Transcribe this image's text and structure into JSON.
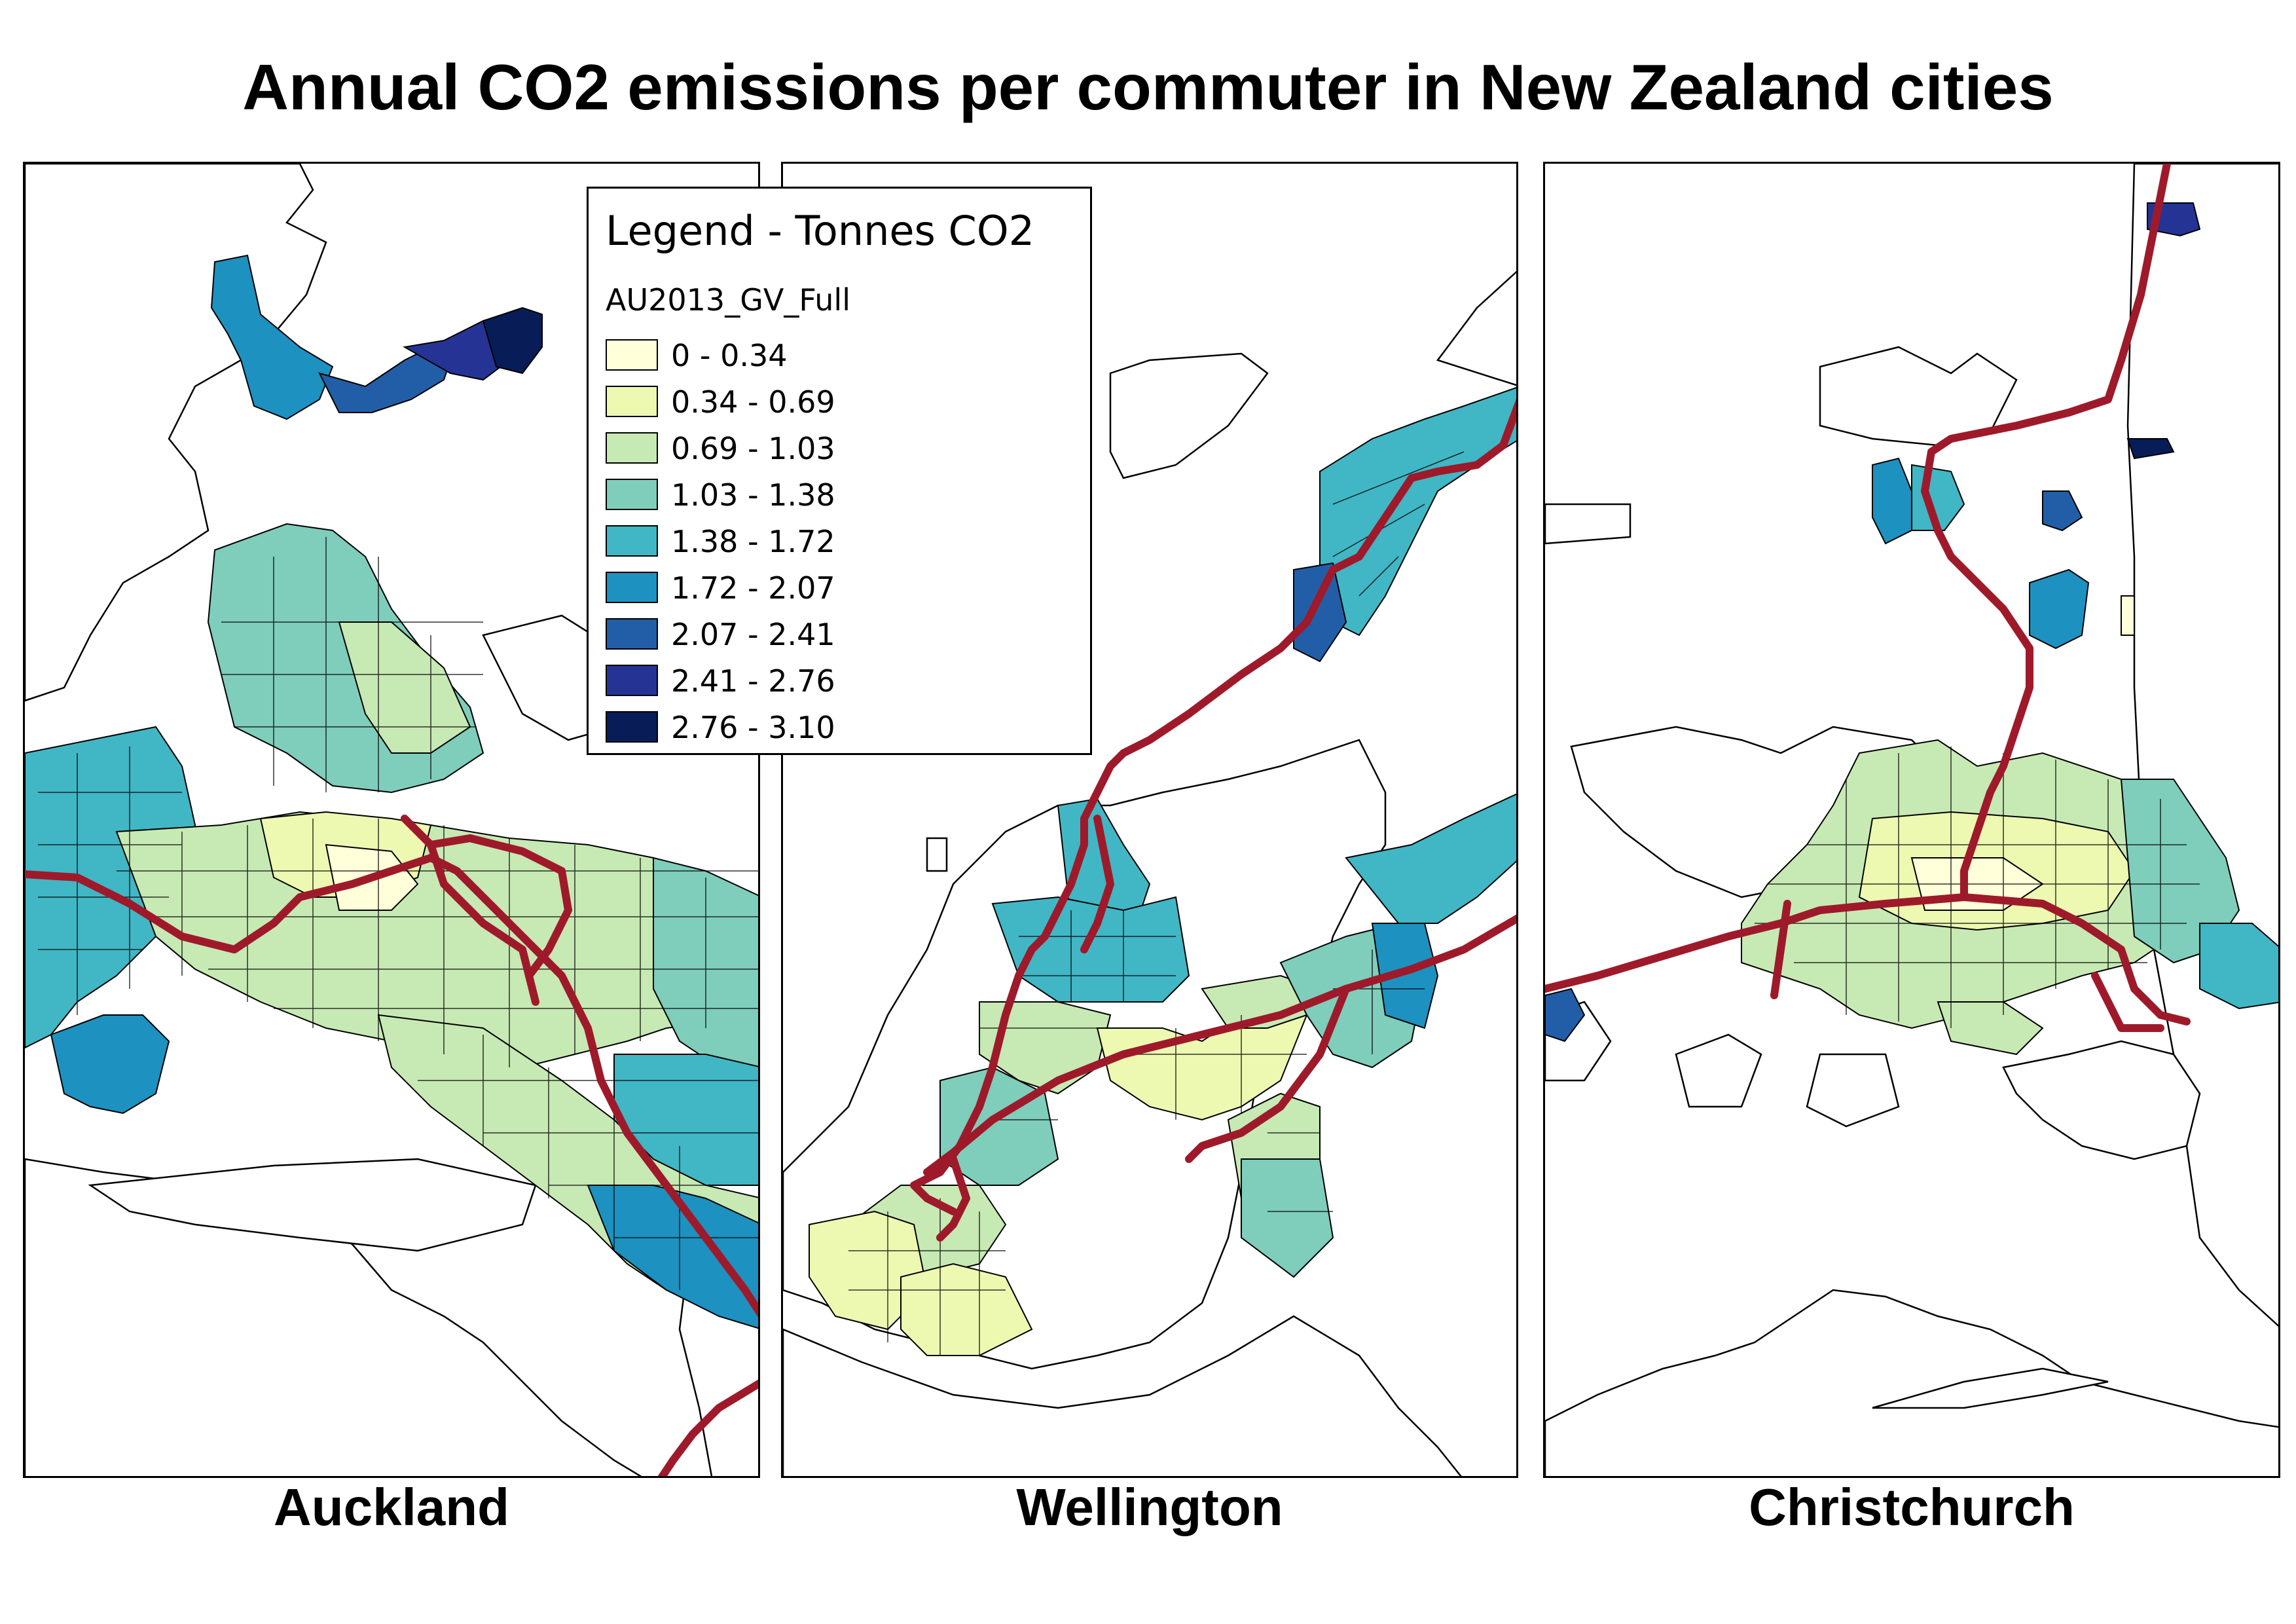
{
  "title": "Annual CO2 emissions per commuter in New Zealand cities",
  "legend": {
    "title": "Legend - Tonnes CO2",
    "subtitle": "AU2013_GV_Full",
    "classes": [
      {
        "label": "0 - 0.34",
        "color": "#ffffd9"
      },
      {
        "label": "0.34 - 0.69",
        "color": "#edf8b1"
      },
      {
        "label": "0.69 - 1.03",
        "color": "#c7e9b4"
      },
      {
        "label": "1.03 - 1.38",
        "color": "#7fcdbb"
      },
      {
        "label": "1.38 - 1.72",
        "color": "#41b6c4"
      },
      {
        "label": "1.72 - 2.07",
        "color": "#1d91c0"
      },
      {
        "label": "2.07 - 2.41",
        "color": "#225ea8"
      },
      {
        "label": "2.41 - 2.76",
        "color": "#253494"
      },
      {
        "label": "2.76 - 3.10",
        "color": "#081d58"
      }
    ]
  },
  "cities": [
    "Auckland",
    "Wellington",
    "Christchurch"
  ],
  "route_color": "#9e1a2a"
}
